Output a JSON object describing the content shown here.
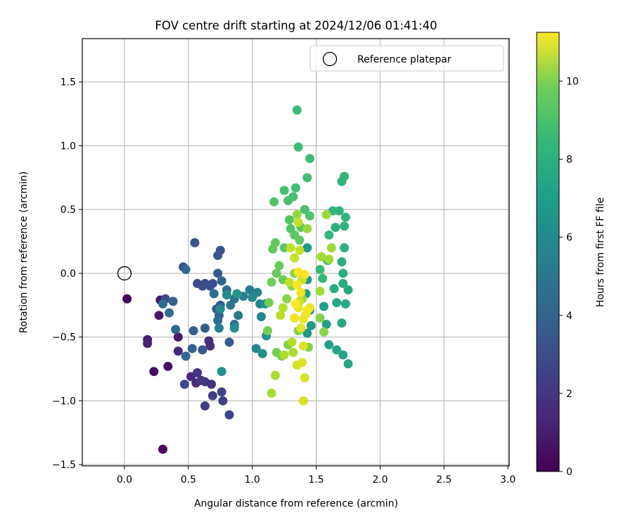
{
  "chart_data": {
    "type": "scatter",
    "title": "FOV centre drift starting at 2024/12/06 01:41:40",
    "xlabel": "Angular distance from reference (arcmin)",
    "ylabel": "Rotation from reference (arcmin)",
    "xlim": [
      -0.33,
      3.01
    ],
    "ylim": [
      -1.51,
      1.84
    ],
    "xticks": [
      "0.0",
      "0.5",
      "1.0",
      "1.5",
      "2.0",
      "2.5",
      "3.0"
    ],
    "yticks": [
      "−1.5",
      "−1.0",
      "−0.5",
      "0.0",
      "0.5",
      "1.0",
      "1.5"
    ],
    "grid": true,
    "legend": {
      "placement": "top-right",
      "entries": [
        "Reference platepar"
      ]
    },
    "reference_point": {
      "x": 0.0,
      "y": 0.0
    },
    "colorbar": {
      "label": "Hours from first FF file",
      "range": [
        0,
        11.25
      ],
      "ticks": [
        "0",
        "2",
        "4",
        "6",
        "8",
        "10"
      ],
      "colormap": "viridis"
    },
    "series": [
      {
        "values": [
          {
            "x": 0.02,
            "y": -0.2,
            "c": 0.1
          },
          {
            "x": 0.3,
            "y": -1.38,
            "c": 0.3
          },
          {
            "x": 0.23,
            "y": -0.77,
            "c": 0.4
          },
          {
            "x": 0.34,
            "y": -0.73,
            "c": 0.5
          },
          {
            "x": 0.28,
            "y": -0.21,
            "c": 0.6
          },
          {
            "x": 0.27,
            "y": -0.33,
            "c": 0.7
          },
          {
            "x": 0.42,
            "y": -0.5,
            "c": 0.8
          },
          {
            "x": 0.18,
            "y": -0.52,
            "c": 1.0
          },
          {
            "x": 0.18,
            "y": -0.55,
            "c": 1.1
          },
          {
            "x": 0.42,
            "y": -0.61,
            "c": 1.2
          },
          {
            "x": 0.52,
            "y": -0.81,
            "c": 1.3
          },
          {
            "x": 0.56,
            "y": -0.86,
            "c": 1.4
          },
          {
            "x": 0.68,
            "y": -0.87,
            "c": 1.5
          },
          {
            "x": 0.66,
            "y": -0.53,
            "c": 1.5
          },
          {
            "x": 0.67,
            "y": -0.57,
            "c": 1.6
          },
          {
            "x": 0.57,
            "y": -0.78,
            "c": 1.7
          },
          {
            "x": 0.6,
            "y": -0.84,
            "c": 1.8
          },
          {
            "x": 0.63,
            "y": -0.85,
            "c": 1.9
          },
          {
            "x": 0.69,
            "y": -0.96,
            "c": 2.0
          },
          {
            "x": 0.63,
            "y": -1.04,
            "c": 2.1
          },
          {
            "x": 0.77,
            "y": -1.0,
            "c": 2.2
          },
          {
            "x": 0.76,
            "y": -0.93,
            "c": 2.3
          },
          {
            "x": 0.82,
            "y": -1.11,
            "c": 2.4
          },
          {
            "x": 0.47,
            "y": -0.87,
            "c": 2.5
          },
          {
            "x": 0.32,
            "y": -0.2,
            "c": 2.6
          },
          {
            "x": 0.57,
            "y": -0.08,
            "c": 2.6
          },
          {
            "x": 0.61,
            "y": -0.1,
            "c": 2.7
          },
          {
            "x": 0.63,
            "y": -0.08,
            "c": 2.7
          },
          {
            "x": 0.67,
            "y": -0.1,
            "c": 2.8
          },
          {
            "x": 0.69,
            "y": -0.08,
            "c": 2.8
          },
          {
            "x": 0.46,
            "y": 0.05,
            "c": 2.9
          },
          {
            "x": 0.55,
            "y": 0.24,
            "c": 2.9
          },
          {
            "x": 0.75,
            "y": 0.18,
            "c": 3.0
          },
          {
            "x": 0.73,
            "y": 0.14,
            "c": 3.0
          },
          {
            "x": 0.73,
            "y": 0.0,
            "c": 3.1
          },
          {
            "x": 0.61,
            "y": -0.6,
            "c": 3.1
          },
          {
            "x": 0.82,
            "y": -0.54,
            "c": 3.2
          },
          {
            "x": 0.75,
            "y": -0.25,
            "c": 3.2
          },
          {
            "x": 0.63,
            "y": -0.43,
            "c": 3.3
          },
          {
            "x": 0.72,
            "y": -0.28,
            "c": 3.3
          },
          {
            "x": 0.54,
            "y": -0.45,
            "c": 3.4
          },
          {
            "x": 0.38,
            "y": -0.22,
            "c": 3.5
          },
          {
            "x": 0.74,
            "y": -0.33,
            "c": 3.5
          },
          {
            "x": 0.76,
            "y": -0.06,
            "c": 3.6
          },
          {
            "x": 0.53,
            "y": -0.59,
            "c": 3.6
          },
          {
            "x": 0.48,
            "y": 0.03,
            "c": 3.7
          },
          {
            "x": 0.4,
            "y": -0.44,
            "c": 3.8
          },
          {
            "x": 0.48,
            "y": -0.65,
            "c": 3.8
          },
          {
            "x": 0.35,
            "y": -0.31,
            "c": 3.9
          },
          {
            "x": 0.3,
            "y": -0.24,
            "c": 4.0
          },
          {
            "x": 0.73,
            "y": -0.37,
            "c": 4.1
          },
          {
            "x": 0.7,
            "y": -0.16,
            "c": 4.1
          },
          {
            "x": 0.8,
            "y": -0.13,
            "c": 4.2
          },
          {
            "x": 0.86,
            "y": -0.2,
            "c": 4.3
          },
          {
            "x": 0.83,
            "y": -0.25,
            "c": 4.4
          },
          {
            "x": 0.86,
            "y": -0.4,
            "c": 4.5
          },
          {
            "x": 0.89,
            "y": -0.33,
            "c": 4.6
          },
          {
            "x": 0.98,
            "y": -0.13,
            "c": 4.7
          },
          {
            "x": 0.93,
            "y": -0.18,
            "c": 4.8
          },
          {
            "x": 0.74,
            "y": -0.43,
            "c": 4.9
          },
          {
            "x": 1.04,
            "y": -0.15,
            "c": 5.0
          },
          {
            "x": 1.06,
            "y": -0.24,
            "c": 5.1
          },
          {
            "x": 1.03,
            "y": -0.59,
            "c": 5.2
          },
          {
            "x": 1.07,
            "y": -0.34,
            "c": 5.3
          },
          {
            "x": 1.0,
            "y": -0.19,
            "c": 5.3
          },
          {
            "x": 0.75,
            "y": -0.28,
            "c": 5.4
          },
          {
            "x": 0.8,
            "y": -0.17,
            "c": 5.4
          },
          {
            "x": 1.08,
            "y": -0.63,
            "c": 5.5
          },
          {
            "x": 0.86,
            "y": -0.43,
            "c": 5.6
          },
          {
            "x": 0.76,
            "y": -0.77,
            "c": 5.7
          },
          {
            "x": 1.1,
            "y": -0.24,
            "c": 5.7
          },
          {
            "x": 0.88,
            "y": -0.16,
            "c": 5.8
          },
          {
            "x": 1.11,
            "y": -0.49,
            "c": 5.8
          },
          {
            "x": 1.43,
            "y": -0.05,
            "c": 5.9
          },
          {
            "x": 1.45,
            "y": -0.29,
            "c": 6.0
          },
          {
            "x": 1.43,
            "y": -0.47,
            "c": 6.0
          },
          {
            "x": 1.46,
            "y": -0.41,
            "c": 6.1
          },
          {
            "x": 1.43,
            "y": 0.2,
            "c": 6.2
          },
          {
            "x": 1.42,
            "y": -0.16,
            "c": 6.3
          },
          {
            "x": 1.56,
            "y": -0.26,
            "c": 6.3
          },
          {
            "x": 1.58,
            "y": -0.4,
            "c": 6.4
          },
          {
            "x": 1.6,
            "y": -0.56,
            "c": 6.4
          },
          {
            "x": 1.66,
            "y": -0.6,
            "c": 6.5
          },
          {
            "x": 1.75,
            "y": -0.71,
            "c": 6.6
          },
          {
            "x": 1.71,
            "y": -0.64,
            "c": 6.6
          },
          {
            "x": 1.7,
            "y": -0.39,
            "c": 6.7
          },
          {
            "x": 1.73,
            "y": -0.24,
            "c": 6.7
          },
          {
            "x": 1.66,
            "y": -0.23,
            "c": 6.8
          },
          {
            "x": 1.75,
            "y": -0.13,
            "c": 6.8
          },
          {
            "x": 1.71,
            "y": -0.08,
            "c": 6.9
          },
          {
            "x": 1.64,
            "y": -0.12,
            "c": 6.9
          },
          {
            "x": 1.71,
            "y": 0.0,
            "c": 7.0
          },
          {
            "x": 1.7,
            "y": 0.09,
            "c": 7.0
          },
          {
            "x": 1.72,
            "y": 0.2,
            "c": 7.1
          },
          {
            "x": 1.65,
            "y": 0.36,
            "c": 7.1
          },
          {
            "x": 1.72,
            "y": 0.37,
            "c": 7.2
          },
          {
            "x": 1.68,
            "y": 0.49,
            "c": 7.2
          },
          {
            "x": 1.73,
            "y": 0.44,
            "c": 7.3
          },
          {
            "x": 1.7,
            "y": 0.72,
            "c": 7.3
          },
          {
            "x": 1.72,
            "y": 0.76,
            "c": 7.4
          },
          {
            "x": 1.63,
            "y": 0.49,
            "c": 7.4
          },
          {
            "x": 1.6,
            "y": 0.3,
            "c": 7.5
          },
          {
            "x": 1.59,
            "y": 0.1,
            "c": 7.5
          },
          {
            "x": 1.55,
            "y": -0.04,
            "c": 7.5
          },
          {
            "x": 1.53,
            "y": 0.03,
            "c": 7.6
          },
          {
            "x": 1.35,
            "y": 1.28,
            "c": 7.6
          },
          {
            "x": 1.36,
            "y": 0.99,
            "c": 7.7
          },
          {
            "x": 1.45,
            "y": 0.9,
            "c": 7.7
          },
          {
            "x": 1.43,
            "y": 0.75,
            "c": 7.8
          },
          {
            "x": 1.34,
            "y": 0.67,
            "c": 7.8
          },
          {
            "x": 1.25,
            "y": 0.65,
            "c": 7.9
          },
          {
            "x": 1.32,
            "y": 0.6,
            "c": 7.9
          },
          {
            "x": 1.28,
            "y": 0.57,
            "c": 8.0
          },
          {
            "x": 1.41,
            "y": 0.5,
            "c": 8.0
          },
          {
            "x": 1.45,
            "y": 0.45,
            "c": 8.1
          },
          {
            "x": 1.17,
            "y": 0.56,
            "c": 8.1
          },
          {
            "x": 1.29,
            "y": 0.42,
            "c": 8.2
          },
          {
            "x": 1.3,
            "y": 0.35,
            "c": 8.2
          },
          {
            "x": 1.38,
            "y": 0.36,
            "c": 8.3
          },
          {
            "x": 1.33,
            "y": 0.3,
            "c": 8.3
          },
          {
            "x": 1.37,
            "y": 0.26,
            "c": 8.4
          },
          {
            "x": 1.25,
            "y": 0.2,
            "c": 8.4
          },
          {
            "x": 1.18,
            "y": 0.24,
            "c": 8.5
          },
          {
            "x": 1.16,
            "y": 0.19,
            "c": 8.5
          },
          {
            "x": 1.21,
            "y": 0.06,
            "c": 8.6
          },
          {
            "x": 1.19,
            "y": 0.0,
            "c": 8.6
          },
          {
            "x": 1.24,
            "y": -0.05,
            "c": 8.7
          },
          {
            "x": 1.15,
            "y": -0.07,
            "c": 8.7
          },
          {
            "x": 1.13,
            "y": -0.23,
            "c": 8.8
          },
          {
            "x": 1.12,
            "y": -0.45,
            "c": 8.8
          },
          {
            "x": 1.19,
            "y": -0.62,
            "c": 8.9
          },
          {
            "x": 1.23,
            "y": -0.65,
            "c": 8.9
          },
          {
            "x": 1.28,
            "y": -0.56,
            "c": 9.0
          },
          {
            "x": 1.36,
            "y": -0.45,
            "c": 9.0
          },
          {
            "x": 1.44,
            "y": -0.58,
            "c": 9.1
          },
          {
            "x": 1.53,
            "y": -0.35,
            "c": 9.1
          },
          {
            "x": 1.56,
            "y": -0.46,
            "c": 9.2
          },
          {
            "x": 1.27,
            "y": -0.2,
            "c": 9.2
          },
          {
            "x": 1.31,
            "y": -0.1,
            "c": 9.3
          },
          {
            "x": 1.33,
            "y": 0.0,
            "c": 9.3
          },
          {
            "x": 1.39,
            "y": -0.2,
            "c": 9.4
          },
          {
            "x": 1.35,
            "y": 0.46,
            "c": 9.4
          },
          {
            "x": 1.43,
            "y": 0.35,
            "c": 9.5
          },
          {
            "x": 1.58,
            "y": 0.46,
            "c": 9.5
          },
          {
            "x": 1.62,
            "y": 0.2,
            "c": 9.6
          },
          {
            "x": 1.6,
            "y": 0.11,
            "c": 9.6
          },
          {
            "x": 1.54,
            "y": 0.13,
            "c": 9.7
          },
          {
            "x": 1.53,
            "y": -0.14,
            "c": 9.7
          },
          {
            "x": 1.18,
            "y": -0.8,
            "c": 9.8
          },
          {
            "x": 1.15,
            "y": -0.94,
            "c": 9.8
          },
          {
            "x": 1.32,
            "y": -0.62,
            "c": 9.9
          },
          {
            "x": 1.25,
            "y": -0.64,
            "c": 9.9
          },
          {
            "x": 1.31,
            "y": -0.54,
            "c": 10.0
          },
          {
            "x": 1.24,
            "y": -0.27,
            "c": 10.0
          },
          {
            "x": 1.22,
            "y": -0.33,
            "c": 10.1
          },
          {
            "x": 1.29,
            "y": -0.07,
            "c": 10.1
          },
          {
            "x": 1.3,
            "y": 0.2,
            "c": 10.2
          },
          {
            "x": 1.36,
            "y": 0.4,
            "c": 10.2
          },
          {
            "x": 1.37,
            "y": 0.18,
            "c": 10.3
          },
          {
            "x": 1.33,
            "y": 0.12,
            "c": 10.3
          },
          {
            "x": 1.39,
            "y": -0.05,
            "c": 10.4
          },
          {
            "x": 1.37,
            "y": -0.22,
            "c": 10.4
          },
          {
            "x": 1.35,
            "y": -0.72,
            "c": 10.5
          },
          {
            "x": 1.4,
            "y": -1.0,
            "c": 10.6
          },
          {
            "x": 1.41,
            "y": -0.82,
            "c": 10.6
          },
          {
            "x": 1.39,
            "y": -0.7,
            "c": 10.7
          },
          {
            "x": 1.4,
            "y": -0.57,
            "c": 10.7
          },
          {
            "x": 1.38,
            "y": -0.43,
            "c": 10.8
          },
          {
            "x": 1.36,
            "y": -0.27,
            "c": 10.8
          },
          {
            "x": 1.42,
            "y": -0.32,
            "c": 10.9
          },
          {
            "x": 1.45,
            "y": -0.27,
            "c": 10.9
          },
          {
            "x": 1.4,
            "y": -0.36,
            "c": 11.0
          },
          {
            "x": 1.33,
            "y": -0.35,
            "c": 11.0
          },
          {
            "x": 1.38,
            "y": -0.15,
            "c": 11.1
          },
          {
            "x": 1.35,
            "y": -0.09,
            "c": 11.1
          },
          {
            "x": 1.41,
            "y": -0.01,
            "c": 11.2
          },
          {
            "x": 1.36,
            "y": 0.01,
            "c": 11.2
          },
          {
            "x": 1.34,
            "y": -0.24,
            "c": 11.2
          },
          {
            "x": 1.43,
            "y": -0.29,
            "c": 11.2
          }
        ]
      }
    ]
  }
}
